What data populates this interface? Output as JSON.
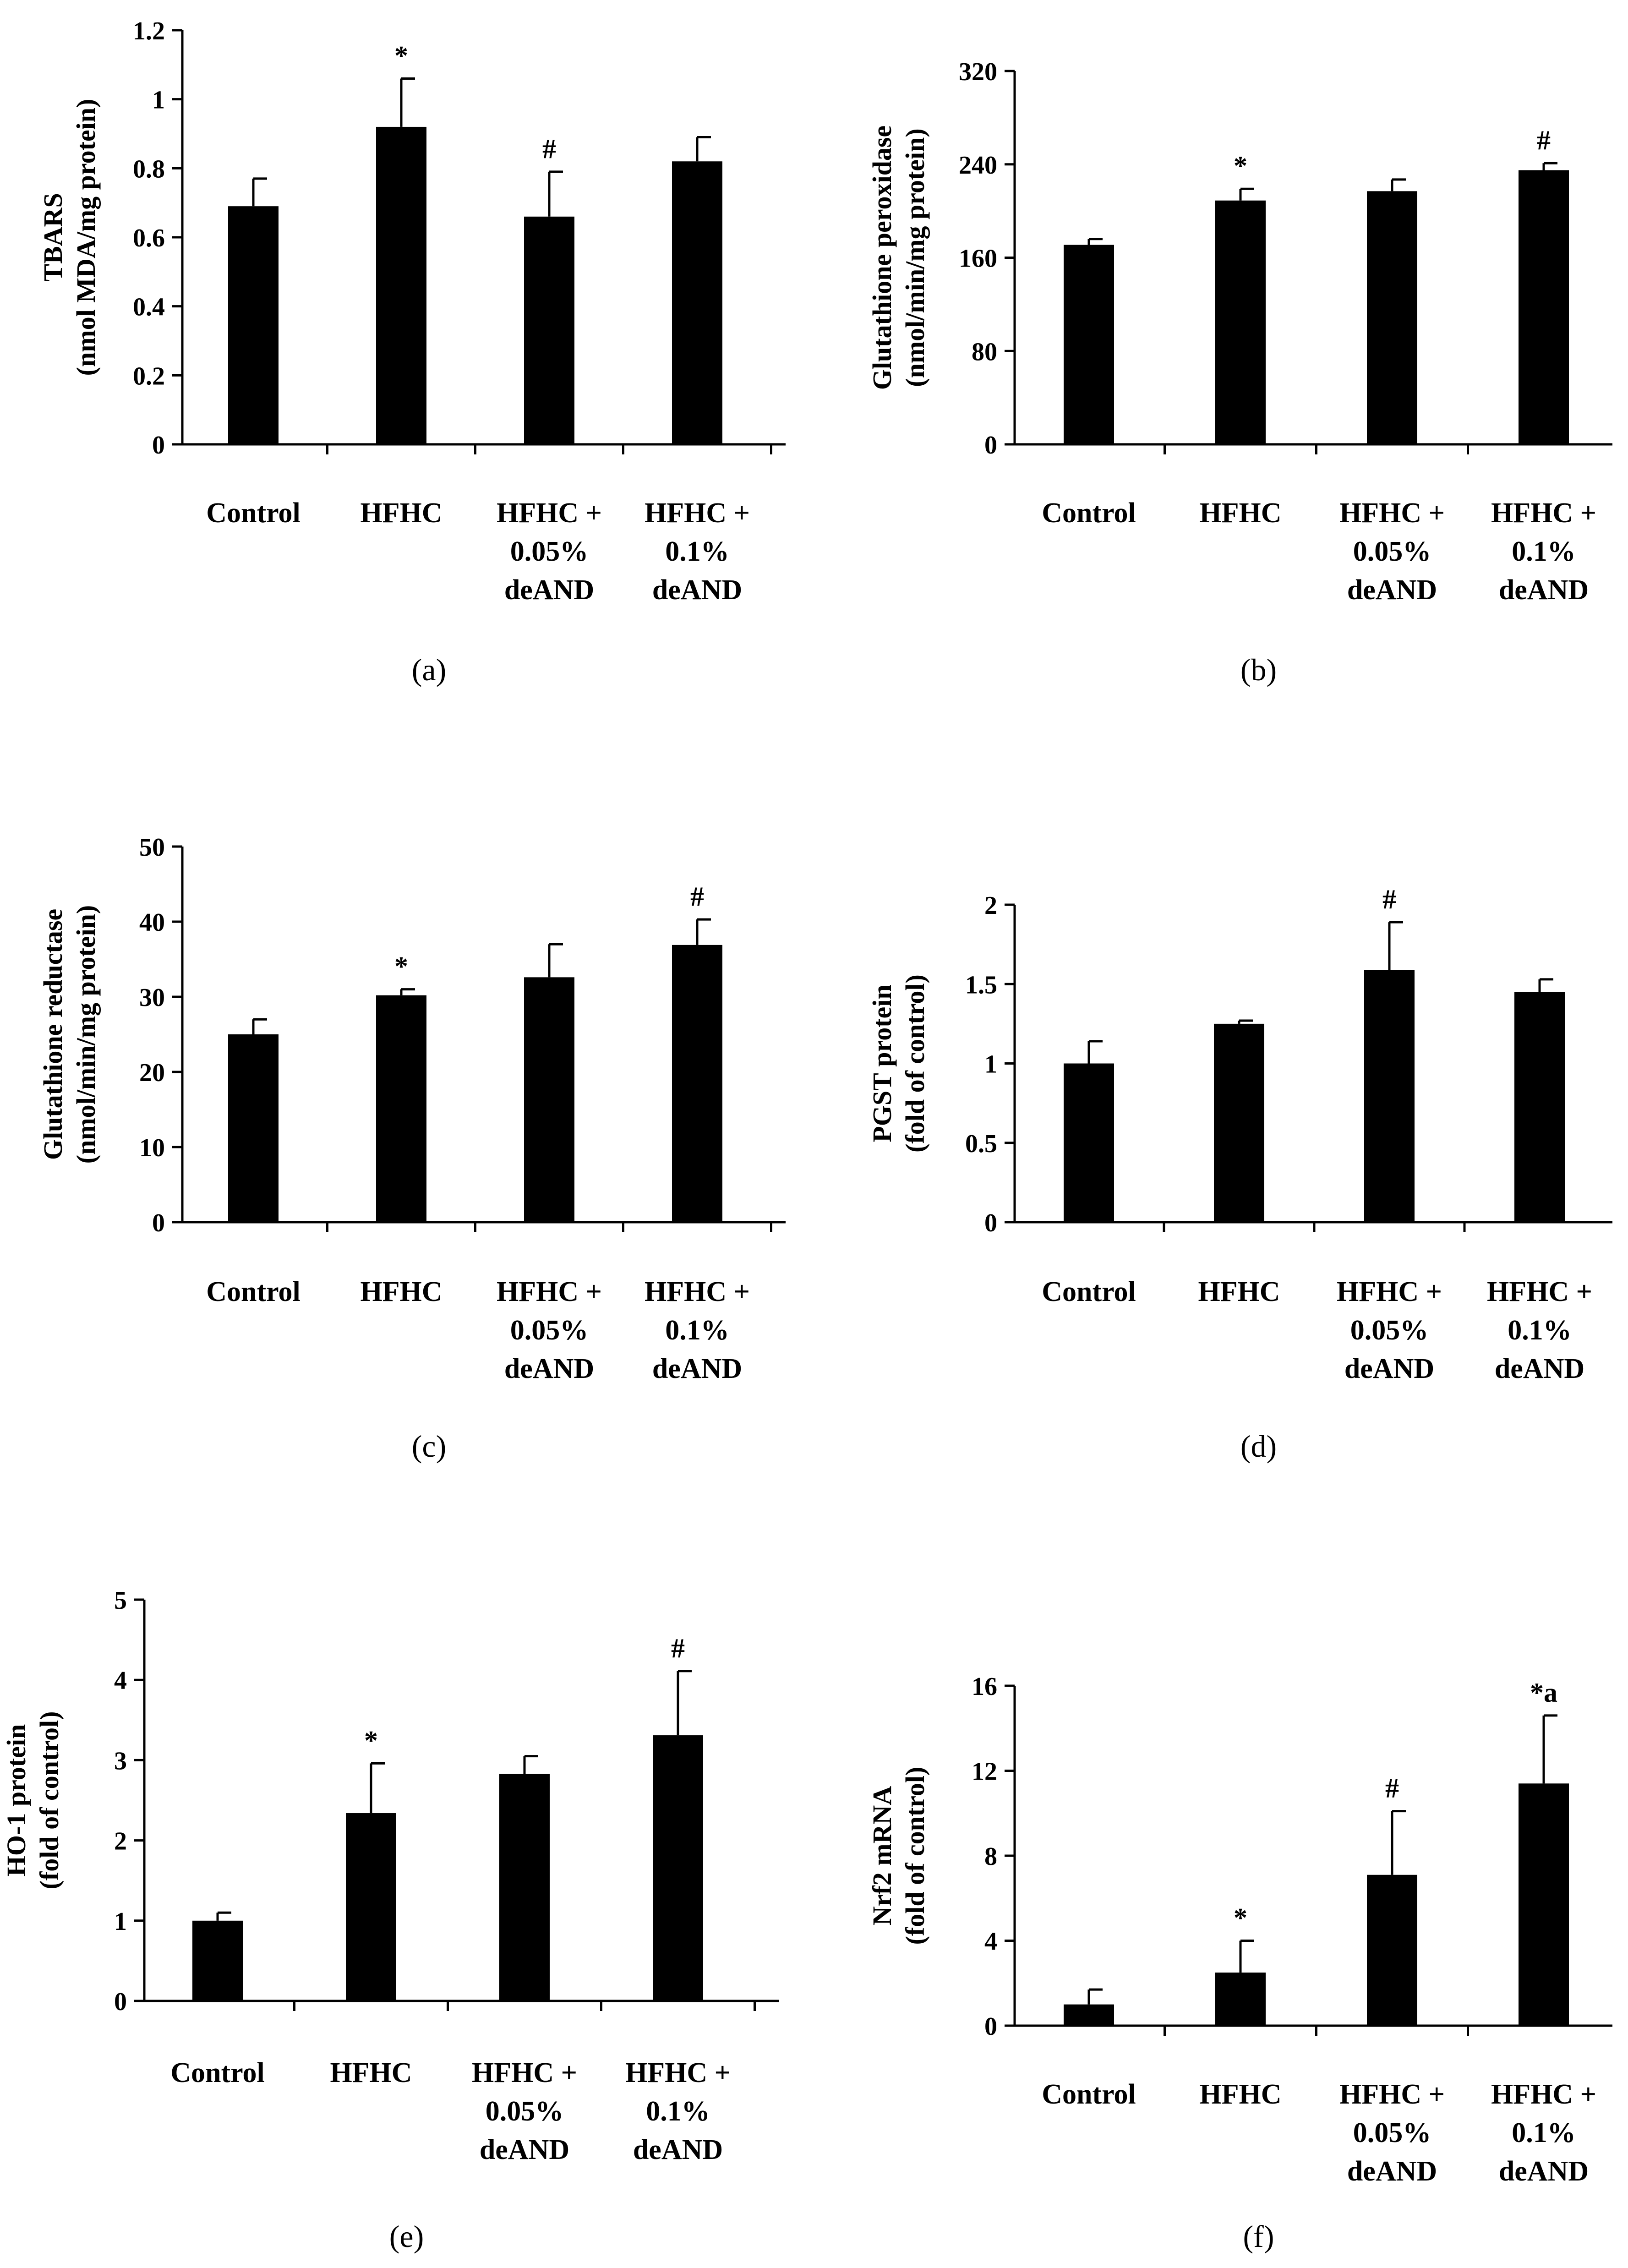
{
  "chart_data": [
    {
      "type": "bar",
      "panel_label": "(a)",
      "categories": [
        "Control",
        "HFHC",
        "HFHC + 0.05% deAND",
        "HFHC + 0.1% deAND"
      ],
      "category_lines": [
        [
          "Control"
        ],
        [
          "HFHC"
        ],
        [
          "HFHC +",
          "0.05%",
          "deAND"
        ],
        [
          "HFHC +",
          "0.1%",
          "deAND"
        ]
      ],
      "values": [
        0.69,
        0.92,
        0.66,
        0.82
      ],
      "errors": [
        0.08,
        0.14,
        0.13,
        0.07
      ],
      "annotations": [
        "",
        "*",
        "#",
        ""
      ],
      "ylabel_lines": [
        "TBARS",
        "(nmol MDA/mg protein)"
      ],
      "ylim": [
        0,
        1.2
      ],
      "yticks": [
        0,
        0.2,
        0.4,
        0.6,
        0.8,
        1,
        1.2
      ],
      "ytick_labels": [
        "0",
        "0.2",
        "0.4",
        "0.6",
        "0.8",
        "1",
        "1.2"
      ]
    },
    {
      "type": "bar",
      "panel_label": "(b)",
      "categories": [
        "Control",
        "HFHC",
        "HFHC + 0.05% deAND",
        "HFHC + 0.1% deAND"
      ],
      "category_lines": [
        [
          "Control"
        ],
        [
          "HFHC"
        ],
        [
          "HFHC +",
          "0.05%",
          "deAND"
        ],
        [
          "HFHC +",
          "0.1%",
          "deAND"
        ]
      ],
      "values": [
        171,
        209,
        217,
        235
      ],
      "errors": [
        5,
        10,
        10,
        6
      ],
      "annotations": [
        "",
        "*",
        "",
        "#"
      ],
      "ylabel_lines": [
        "Glutathione peroxidase",
        "(nmol/min/mg protein)"
      ],
      "ylim": [
        0,
        320
      ],
      "yticks": [
        0,
        80,
        160,
        240,
        320
      ],
      "ytick_labels": [
        "0",
        "80",
        "160",
        "240",
        "320"
      ]
    },
    {
      "type": "bar",
      "panel_label": "(c)",
      "categories": [
        "Control",
        "HFHC",
        "HFHC + 0.05% deAND",
        "HFHC + 0.1% deAND"
      ],
      "category_lines": [
        [
          "Control"
        ],
        [
          "HFHC"
        ],
        [
          "HFHC +",
          "0.05%",
          "deAND"
        ],
        [
          "HFHC +",
          "0.1%",
          "deAND"
        ]
      ],
      "values": [
        25,
        30.2,
        32.6,
        36.9
      ],
      "errors": [
        2,
        0.8,
        4.4,
        3.4
      ],
      "annotations": [
        "",
        "*",
        "",
        "#"
      ],
      "ylabel_lines": [
        "Glutathione reductase",
        "(nmol/min/mg protein)"
      ],
      "ylim": [
        0,
        50
      ],
      "yticks": [
        0,
        10,
        20,
        30,
        40,
        50
      ],
      "ytick_labels": [
        "0",
        "10",
        "20",
        "30",
        "40",
        "50"
      ]
    },
    {
      "type": "bar",
      "panel_label": "(d)",
      "categories": [
        "Control",
        "HFHC",
        "HFHC + 0.05% deAND",
        "HFHC + 0.1% deAND"
      ],
      "category_lines": [
        [
          "Control"
        ],
        [
          "HFHC"
        ],
        [
          "HFHC +",
          "0.05%",
          "deAND"
        ],
        [
          "HFHC +",
          "0.1%",
          "deAND"
        ]
      ],
      "values": [
        1.0,
        1.25,
        1.59,
        1.45
      ],
      "errors": [
        0.14,
        0.02,
        0.3,
        0.08
      ],
      "annotations": [
        "",
        "",
        "#",
        ""
      ],
      "ylabel_lines": [
        "PGST protein",
        "(fold of control)"
      ],
      "ylim": [
        0,
        2
      ],
      "yticks": [
        0,
        0.5,
        1,
        1.5,
        2
      ],
      "ytick_labels": [
        "0",
        "0.5",
        "1",
        "1.5",
        "2"
      ]
    },
    {
      "type": "bar",
      "panel_label": "(e)",
      "categories": [
        "Control",
        "HFHC",
        "HFHC + 0.05% deAND",
        "HFHC + 0.1% deAND"
      ],
      "category_lines": [
        [
          "Control"
        ],
        [
          "HFHC"
        ],
        [
          "HFHC +",
          "0.05%",
          "deAND"
        ],
        [
          "HFHC +",
          "0.1%",
          "deAND"
        ]
      ],
      "values": [
        1.0,
        2.34,
        2.83,
        3.31
      ],
      "errors": [
        0.1,
        0.62,
        0.22,
        0.8
      ],
      "annotations": [
        "",
        "*",
        "",
        "#"
      ],
      "ylabel_lines": [
        "HO-1 protein",
        "(fold of control)"
      ],
      "ylim": [
        0,
        5
      ],
      "yticks": [
        0,
        1,
        2,
        3,
        4,
        5
      ],
      "ytick_labels": [
        "0",
        "1",
        "2",
        "3",
        "4",
        "5"
      ]
    },
    {
      "type": "bar",
      "panel_label": "(f)",
      "categories": [
        "Control",
        "HFHC",
        "HFHC + 0.05% deAND",
        "HFHC + 0.1% deAND"
      ],
      "category_lines": [
        [
          "Control"
        ],
        [
          "HFHC"
        ],
        [
          "HFHC +",
          "0.05%",
          "deAND"
        ],
        [
          "HFHC +",
          "0.1%",
          "deAND"
        ]
      ],
      "values": [
        1.0,
        2.5,
        7.1,
        11.4
      ],
      "errors": [
        0.7,
        1.5,
        3.0,
        3.2
      ],
      "annotations": [
        "",
        "*",
        "#",
        "*a"
      ],
      "ylabel_lines": [
        "Nrf2 mRNA",
        "(fold of control)"
      ],
      "ylim": [
        0,
        16
      ],
      "yticks": [
        0,
        4,
        8,
        12,
        16
      ],
      "ytick_labels": [
        "0",
        "4",
        "8",
        "12",
        "16"
      ]
    }
  ]
}
